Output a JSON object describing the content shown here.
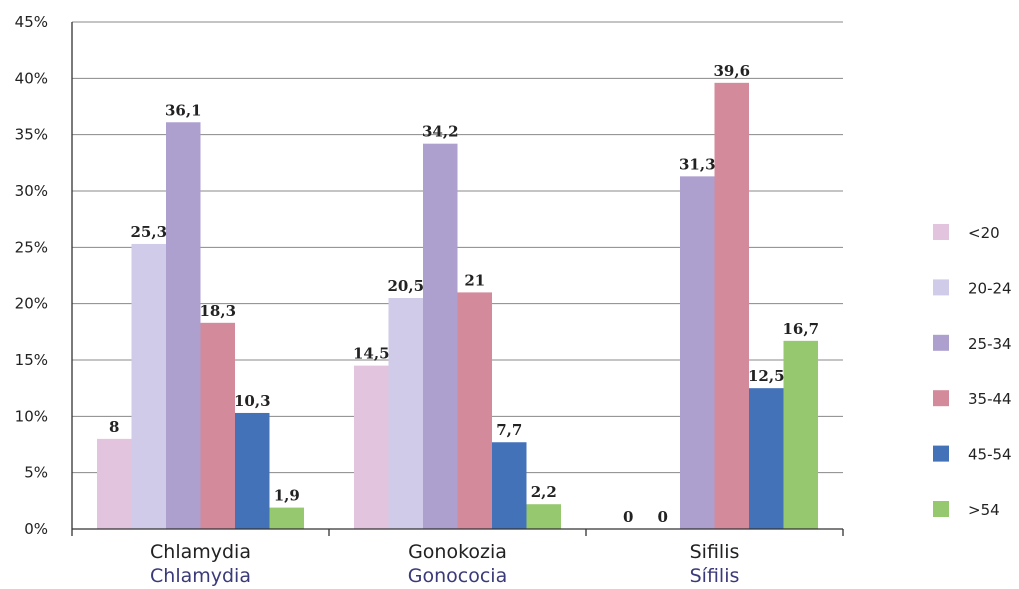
{
  "chart_data": {
    "type": "bar",
    "ylim": [
      0,
      45
    ],
    "y_ticks": [
      0,
      5,
      10,
      15,
      20,
      25,
      30,
      35,
      40,
      45
    ],
    "y_tick_suffix": "%",
    "grid": true,
    "legend_position": "right",
    "categories": [
      {
        "label": "Chlamydia",
        "sublabel": "Chlamydia"
      },
      {
        "label": "Gonokozia",
        "sublabel": "Gonococia"
      },
      {
        "label": "Sifilis",
        "sublabel": "Sífilis"
      }
    ],
    "series": [
      {
        "name": "<20",
        "color": "#e3c4df",
        "values": [
          8,
          14.5,
          0
        ],
        "labels": [
          "8",
          "14,5",
          "0"
        ]
      },
      {
        "name": "20-24",
        "color": "#cfcbe8",
        "values": [
          25.3,
          20.5,
          0
        ],
        "labels": [
          "25,3",
          "20,5",
          "0"
        ]
      },
      {
        "name": "25-34",
        "color": "#ad9fce",
        "values": [
          36.1,
          34.2,
          31.3
        ],
        "labels": [
          "36,1",
          "34,2",
          "31,3"
        ]
      },
      {
        "name": "35-44",
        "color": "#d38a9b",
        "values": [
          18.3,
          21,
          39.6
        ],
        "labels": [
          "18,3",
          "21",
          "39,6"
        ]
      },
      {
        "name": "45-54",
        "color": "#4472b8",
        "values": [
          10.3,
          7.7,
          12.5
        ],
        "labels": [
          "10,3",
          "7,7",
          "12,5"
        ]
      },
      {
        "name": ">54",
        "color": "#96c870",
        "values": [
          1.9,
          2.2,
          16.7
        ],
        "labels": [
          "1,9",
          "2,2",
          "16,7"
        ]
      }
    ]
  }
}
